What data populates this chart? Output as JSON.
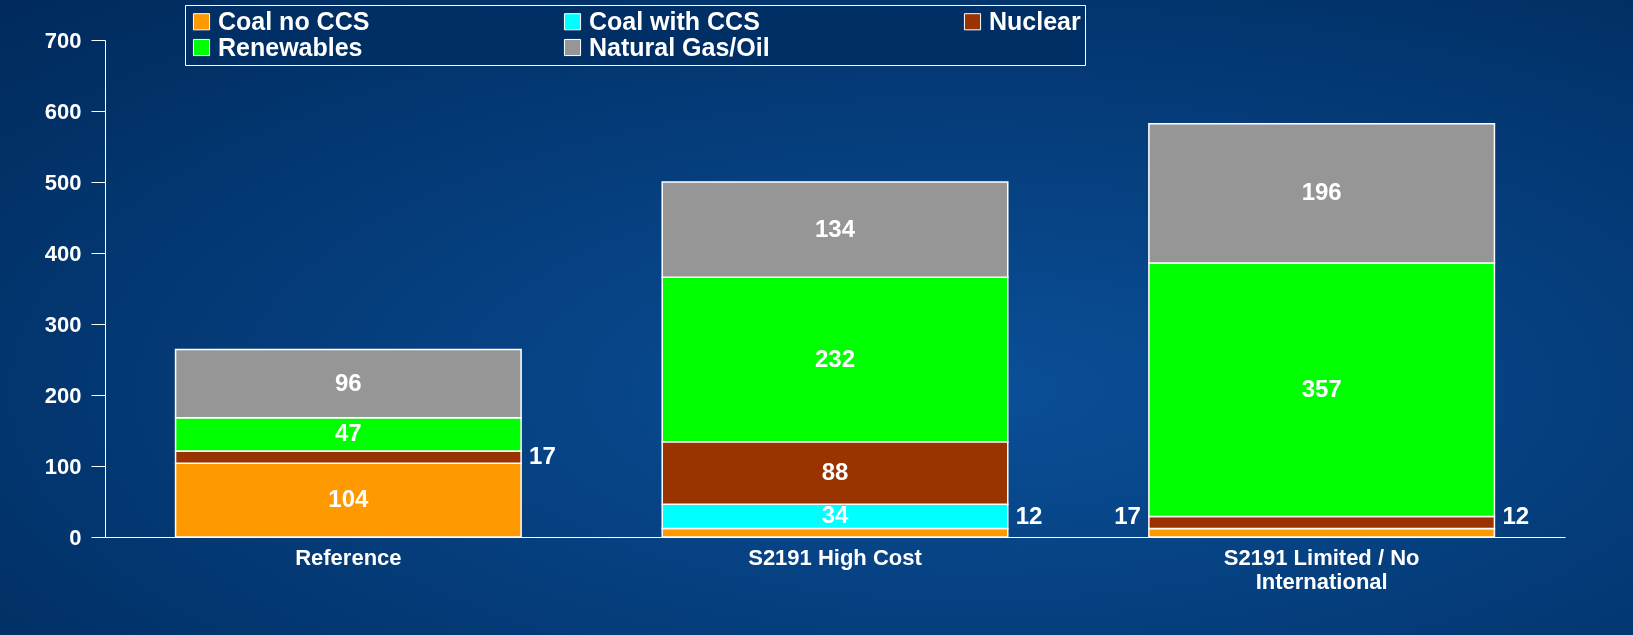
{
  "chart_data": {
    "type": "bar",
    "stacked": true,
    "data_labels": true,
    "legend": "top",
    "grid": false,
    "categories": [
      "Reference",
      "S2191 High Cost",
      "S2191 Limited / No International"
    ],
    "ylim": [
      0,
      700
    ],
    "yticks": [
      0,
      100,
      200,
      300,
      400,
      500,
      600,
      700
    ],
    "series": [
      {
        "name": "Coal no CCS",
        "color": "#ff9900",
        "values": [
          104,
          12,
          12
        ]
      },
      {
        "name": "Coal with CCS",
        "color": "#00ffff",
        "values": [
          0,
          34,
          0
        ],
        "value_labels": [
          null,
          "34",
          null
        ]
      },
      {
        "name": "Nuclear",
        "color": "#993300",
        "values": [
          17,
          88,
          17
        ]
      },
      {
        "name": "Renewables",
        "color": "#00ff00",
        "values": [
          47,
          232,
          357
        ]
      },
      {
        "name": "Natural Gas/Oil",
        "color": "#969696",
        "values": [
          96,
          134,
          196
        ]
      }
    ]
  }
}
